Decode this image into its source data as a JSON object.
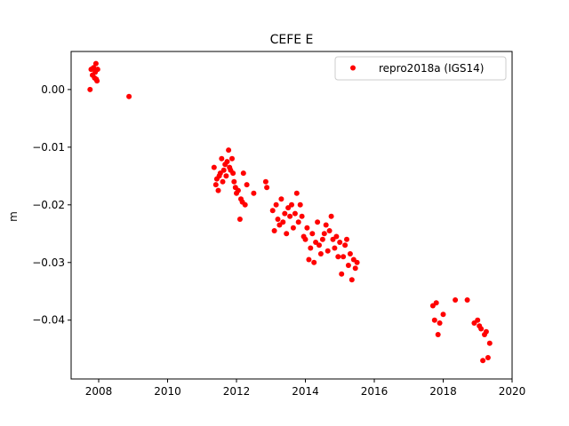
{
  "chart_data": {
    "type": "scatter",
    "title": "CEFE E",
    "xlabel": "",
    "ylabel": "m",
    "xlim": [
      2007.2,
      2020.0
    ],
    "ylim": [
      -0.0502,
      0.0066
    ],
    "xticks": [
      2008,
      2010,
      2012,
      2014,
      2016,
      2018,
      2020
    ],
    "yticks": [
      0.0,
      -0.01,
      -0.02,
      -0.03,
      -0.04
    ],
    "xtick_labels": [
      "2008",
      "2010",
      "2012",
      "2014",
      "2016",
      "2018",
      "2020"
    ],
    "ytick_labels": [
      "0.00",
      "−0.01",
      "−0.02",
      "−0.03",
      "−0.04"
    ],
    "grid": false,
    "legend": {
      "position": "top-right"
    },
    "series": [
      {
        "name": "repro2018a (IGS14)",
        "color": "#ff0000",
        "marker": "circle",
        "x": [
          2007.75,
          2007.78,
          2007.82,
          2007.85,
          2007.88,
          2007.9,
          2007.92,
          2007.93,
          2007.95,
          2007.97,
          2008.88,
          2011.35,
          2011.4,
          2011.43,
          2011.47,
          2011.5,
          2011.53,
          2011.57,
          2011.6,
          2011.63,
          2011.67,
          2011.7,
          2011.73,
          2011.77,
          2011.8,
          2011.83,
          2011.87,
          2011.9,
          2011.93,
          2011.97,
          2012.0,
          2012.05,
          2012.1,
          2012.13,
          2012.17,
          2012.2,
          2012.25,
          2012.3,
          2012.5,
          2012.85,
          2012.88,
          2013.05,
          2013.1,
          2013.15,
          2013.2,
          2013.25,
          2013.3,
          2013.35,
          2013.4,
          2013.45,
          2013.5,
          2013.55,
          2013.6,
          2013.65,
          2013.7,
          2013.75,
          2013.8,
          2013.85,
          2013.9,
          2013.95,
          2014.0,
          2014.05,
          2014.1,
          2014.15,
          2014.2,
          2014.25,
          2014.3,
          2014.35,
          2014.4,
          2014.45,
          2014.5,
          2014.55,
          2014.6,
          2014.65,
          2014.7,
          2014.75,
          2014.8,
          2014.85,
          2014.9,
          2014.95,
          2015.0,
          2015.05,
          2015.1,
          2015.15,
          2015.2,
          2015.25,
          2015.3,
          2015.35,
          2015.4,
          2015.45,
          2015.5,
          2017.7,
          2017.75,
          2017.8,
          2017.85,
          2017.9,
          2018.0,
          2018.35,
          2018.7,
          2018.9,
          2019.0,
          2019.05,
          2019.1,
          2019.15,
          2019.2,
          2019.25,
          2019.3,
          2019.35
        ],
        "y": [
          0.0,
          0.0035,
          0.0025,
          0.0038,
          0.002,
          0.003,
          0.0045,
          0.0018,
          0.0015,
          0.0035,
          -0.0012,
          -0.0135,
          -0.0165,
          -0.0155,
          -0.0175,
          -0.015,
          -0.0145,
          -0.012,
          -0.016,
          -0.014,
          -0.013,
          -0.015,
          -0.0125,
          -0.0105,
          -0.0135,
          -0.014,
          -0.012,
          -0.0145,
          -0.016,
          -0.017,
          -0.018,
          -0.0175,
          -0.0225,
          -0.019,
          -0.0195,
          -0.0145,
          -0.02,
          -0.0165,
          -0.018,
          -0.016,
          -0.017,
          -0.021,
          -0.0245,
          -0.02,
          -0.0225,
          -0.0235,
          -0.019,
          -0.023,
          -0.0215,
          -0.025,
          -0.0205,
          -0.022,
          -0.02,
          -0.024,
          -0.0215,
          -0.018,
          -0.023,
          -0.02,
          -0.022,
          -0.0255,
          -0.026,
          -0.024,
          -0.0295,
          -0.0275,
          -0.025,
          -0.03,
          -0.0265,
          -0.023,
          -0.027,
          -0.0285,
          -0.026,
          -0.025,
          -0.0235,
          -0.028,
          -0.0245,
          -0.022,
          -0.026,
          -0.0275,
          -0.0255,
          -0.029,
          -0.0265,
          -0.032,
          -0.029,
          -0.027,
          -0.026,
          -0.0305,
          -0.0285,
          -0.033,
          -0.0295,
          -0.031,
          -0.03,
          -0.0375,
          -0.04,
          -0.037,
          -0.0425,
          -0.0405,
          -0.039,
          -0.0365,
          -0.0365,
          -0.0405,
          -0.04,
          -0.041,
          -0.0415,
          -0.047,
          -0.0425,
          -0.042,
          -0.0465,
          -0.044
        ]
      }
    ]
  }
}
